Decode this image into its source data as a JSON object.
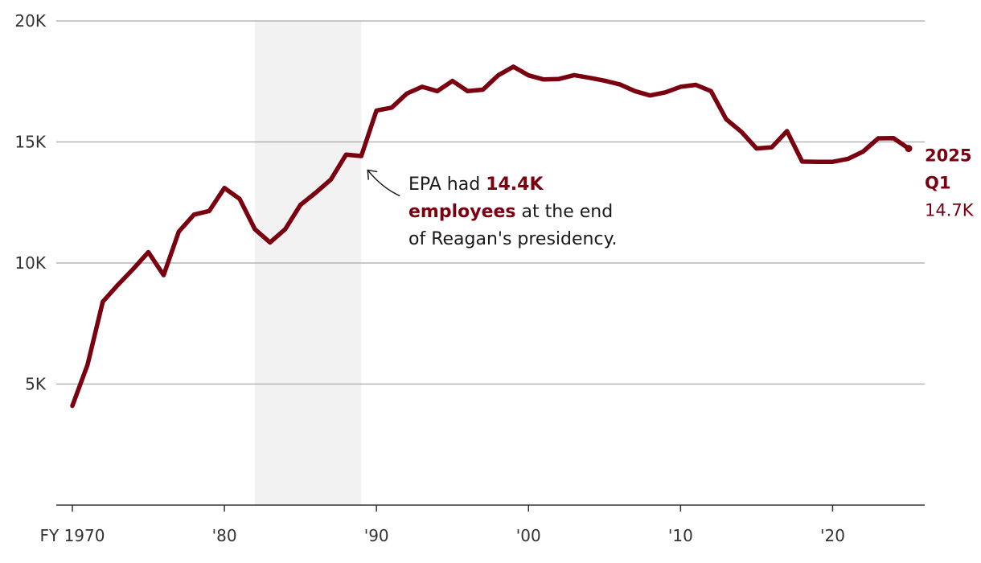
{
  "colors": {
    "line": "#7a0010",
    "shade": "#f2f2f2",
    "grid": "#a8a8a8",
    "text": "#333333"
  },
  "chart_data": {
    "type": "line",
    "title": "",
    "xlabel": "",
    "ylabel": "",
    "xlim": [
      1969,
      2026
    ],
    "ylim": [
      0,
      20000
    ],
    "grid": true,
    "y_ticks": [
      {
        "value": 5000,
        "label": "5K"
      },
      {
        "value": 10000,
        "label": "10K"
      },
      {
        "value": 15000,
        "label": "15K"
      },
      {
        "value": 20000,
        "label": "20K"
      }
    ],
    "x_ticks": [
      {
        "value": 1970,
        "label": "FY 1970"
      },
      {
        "value": 1980,
        "label": "'80"
      },
      {
        "value": 1990,
        "label": "'90"
      },
      {
        "value": 2000,
        "label": "'00"
      },
      {
        "value": 2010,
        "label": "'10"
      },
      {
        "value": 2020,
        "label": "'20"
      }
    ],
    "shaded_range": {
      "start": 1982,
      "end": 1989,
      "description": "Reagan presidency"
    },
    "series": [
      {
        "name": "EPA employees",
        "x": [
          1970,
          1971,
          1972,
          1973,
          1974,
          1975,
          1976,
          1977,
          1978,
          1979,
          1980,
          1981,
          1982,
          1983,
          1984,
          1985,
          1986,
          1987,
          1988,
          1989,
          1990,
          1991,
          1992,
          1993,
          1994,
          1995,
          1996,
          1997,
          1998,
          1999,
          2000,
          2001,
          2002,
          2003,
          2004,
          2005,
          2006,
          2007,
          2008,
          2009,
          2010,
          2011,
          2012,
          2013,
          2014,
          2015,
          2016,
          2017,
          2018,
          2019,
          2020,
          2021,
          2022,
          2023,
          2024,
          2025
        ],
        "values": [
          4100,
          5800,
          8400,
          9100,
          9750,
          10450,
          9500,
          11300,
          12000,
          12150,
          13100,
          12650,
          11400,
          10850,
          11400,
          12400,
          12900,
          13450,
          14480,
          14420,
          16300,
          16420,
          17000,
          17280,
          17100,
          17520,
          17100,
          17160,
          17750,
          18110,
          17750,
          17580,
          17600,
          17760,
          17650,
          17530,
          17380,
          17100,
          16920,
          17050,
          17280,
          17360,
          17100,
          15940,
          15420,
          14730,
          14780,
          15450,
          14190,
          14180,
          14180,
          14300,
          14600,
          15150,
          15160,
          14730
        ]
      }
    ],
    "end_label": {
      "line1": "2025",
      "line2": "Q1",
      "value_text": "14.7K"
    },
    "annotation": {
      "x": 1989,
      "y": 14400,
      "line1_pre": "EPA had ",
      "line1_bold": "14.4K",
      "line2_bold": "employees",
      "line2_post": " at the end",
      "line3": "of Reagan's presidency."
    }
  }
}
